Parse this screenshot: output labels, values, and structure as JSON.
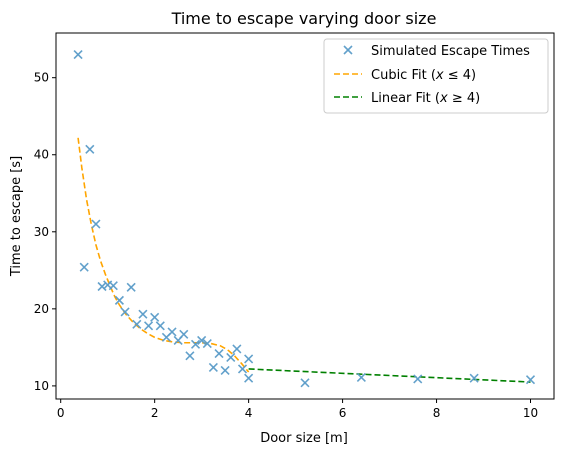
{
  "chart_data": {
    "type": "scatter",
    "title": "Time to escape varying door size",
    "xlabel": "Door size [m]",
    "ylabel": "Time to escape [s]",
    "xlim": [
      -0.1,
      10.5
    ],
    "ylim": [
      8.3,
      55.8
    ],
    "grid": false,
    "legend_position": "top-right",
    "x_ticks": [
      0,
      2,
      4,
      6,
      8,
      10
    ],
    "x_tick_labels": [
      "0",
      "2",
      "4",
      "6",
      "8",
      "10"
    ],
    "y_ticks": [
      10,
      20,
      30,
      40,
      50
    ],
    "y_tick_labels": [
      "10",
      "20",
      "30",
      "40",
      "50"
    ],
    "series": [
      {
        "name": "Simulated Escape Times",
        "kind": "scatter",
        "marker": "x",
        "color": "#5b9cc8",
        "points": [
          [
            0.37,
            53.0
          ],
          [
            0.5,
            25.4
          ],
          [
            0.62,
            40.7
          ],
          [
            0.75,
            31.0
          ],
          [
            0.88,
            22.9
          ],
          [
            1.0,
            23.1
          ],
          [
            1.12,
            23.0
          ],
          [
            1.25,
            21.1
          ],
          [
            1.37,
            19.6
          ],
          [
            1.5,
            22.8
          ],
          [
            1.62,
            18.0
          ],
          [
            1.75,
            19.3
          ],
          [
            1.87,
            17.8
          ],
          [
            2.0,
            18.9
          ],
          [
            2.12,
            17.8
          ],
          [
            2.25,
            16.3
          ],
          [
            2.37,
            17.0
          ],
          [
            2.5,
            15.9
          ],
          [
            2.62,
            16.7
          ],
          [
            2.75,
            13.9
          ],
          [
            2.87,
            15.4
          ],
          [
            3.0,
            15.9
          ],
          [
            3.12,
            15.5
          ],
          [
            3.25,
            12.4
          ],
          [
            3.37,
            14.2
          ],
          [
            3.5,
            12.0
          ],
          [
            3.62,
            13.7
          ],
          [
            3.75,
            14.8
          ],
          [
            3.87,
            12.2
          ],
          [
            4.0,
            13.5
          ],
          [
            4.0,
            11.0
          ],
          [
            5.2,
            10.4
          ],
          [
            6.4,
            11.1
          ],
          [
            7.6,
            10.9
          ],
          [
            8.8,
            11.0
          ],
          [
            10.0,
            10.8
          ]
        ]
      },
      {
        "name": "Cubic Fit (x ≤ 4)",
        "label_main": "Cubic Fit (",
        "label_var": "x",
        "label_op": " ≤ 4)",
        "kind": "line",
        "dash": "dashed",
        "color": "#ffa500",
        "points": [
          [
            0.37,
            42.2
          ],
          [
            0.45,
            38.3
          ],
          [
            0.55,
            34.2
          ],
          [
            0.65,
            31.0
          ],
          [
            0.75,
            28.3
          ],
          [
            0.85,
            26.2
          ],
          [
            0.95,
            24.5
          ],
          [
            1.05,
            23.0
          ],
          [
            1.15,
            21.6
          ],
          [
            1.25,
            20.5
          ],
          [
            1.4,
            19.2
          ],
          [
            1.55,
            18.2
          ],
          [
            1.7,
            17.4
          ],
          [
            1.85,
            16.8
          ],
          [
            2.0,
            16.3
          ],
          [
            2.2,
            15.9
          ],
          [
            2.4,
            15.7
          ],
          [
            2.6,
            15.6
          ],
          [
            2.8,
            15.6
          ],
          [
            3.0,
            15.6
          ],
          [
            3.2,
            15.5
          ],
          [
            3.4,
            15.2
          ],
          [
            3.55,
            14.7
          ],
          [
            3.7,
            13.9
          ],
          [
            3.85,
            12.9
          ],
          [
            4.0,
            11.8
          ]
        ]
      },
      {
        "name": "Linear Fit (x ≥ 4)",
        "label_main": "Linear Fit (",
        "label_var": "x",
        "label_op": " ≥ 4)",
        "kind": "line",
        "dash": "dashed",
        "color": "#008000",
        "points": [
          [
            4.0,
            12.2
          ],
          [
            10.0,
            10.5
          ]
        ]
      }
    ]
  }
}
